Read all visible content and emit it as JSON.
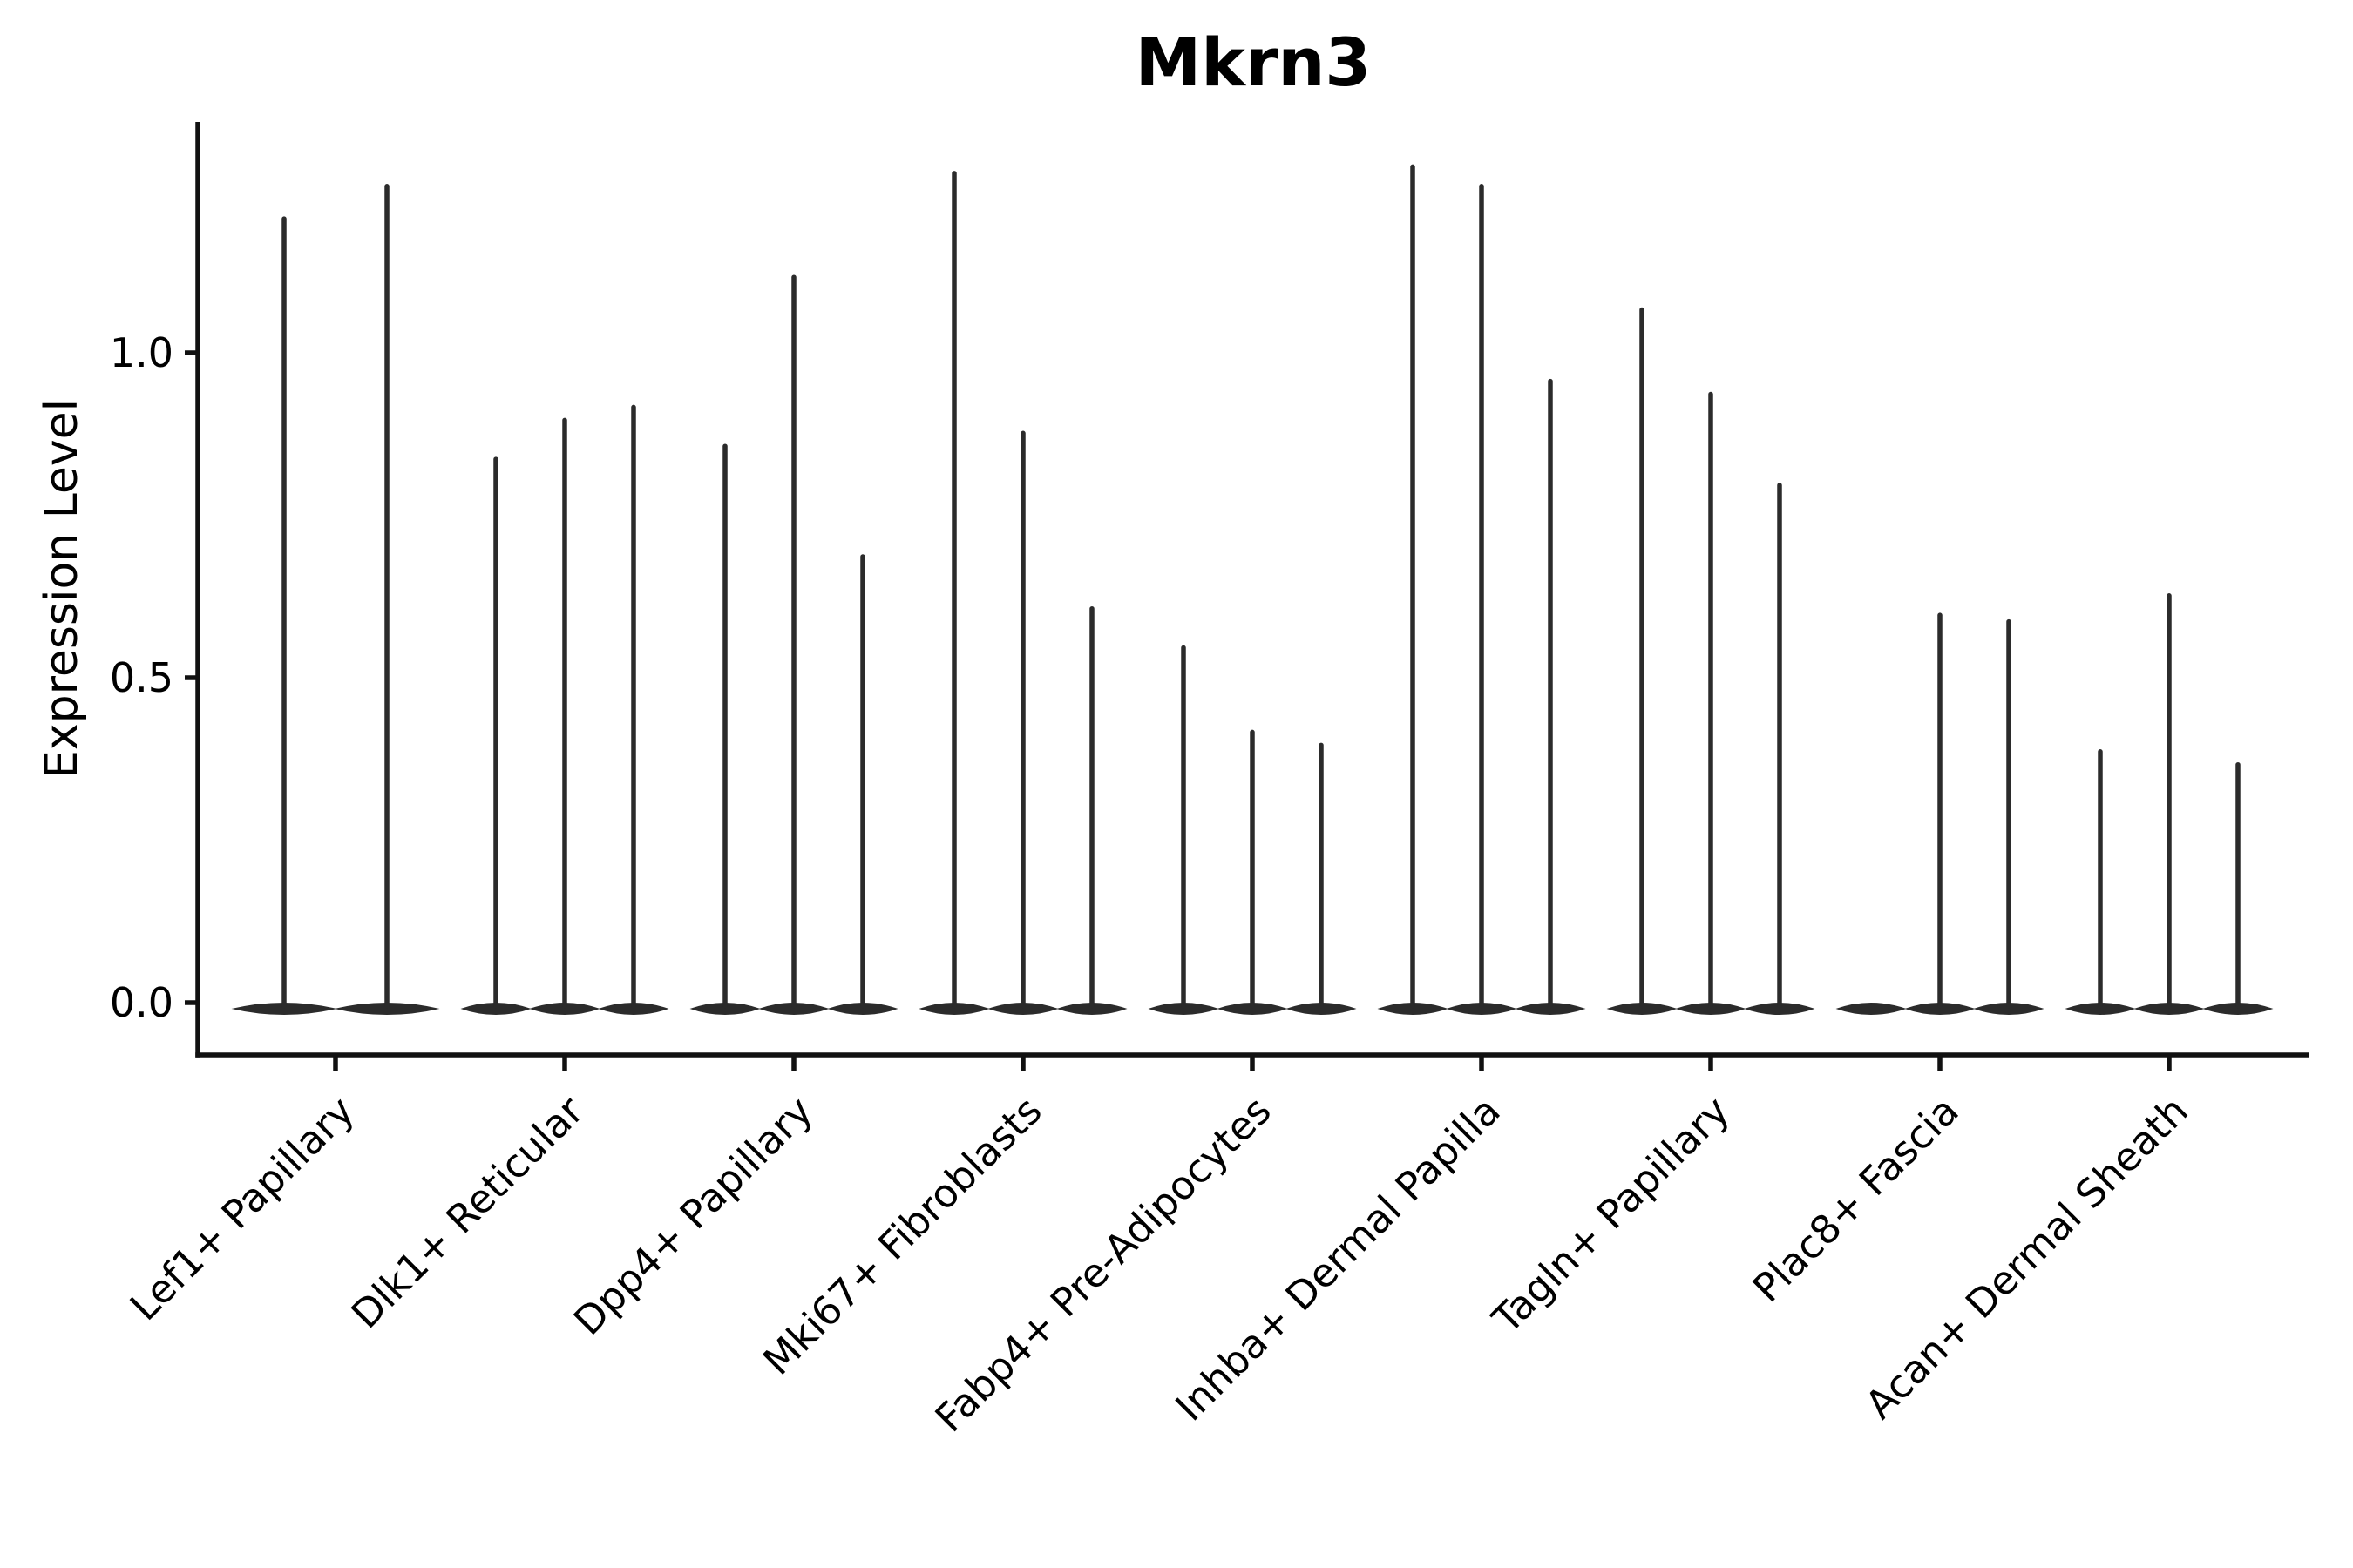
{
  "figure": {
    "title": "Mkrn3"
  },
  "chart_data": {
    "type": "violin",
    "title": "Mkrn3",
    "xlabel": "",
    "ylabel": "Expression Level",
    "yticks": [
      {
        "v": 0.0,
        "label": "0.0"
      },
      {
        "v": 0.5,
        "label": "0.5"
      },
      {
        "v": 1.0,
        "label": "1.0"
      }
    ],
    "ylim": [
      -0.08,
      1.36
    ],
    "grid": false,
    "legend_position": "none",
    "categories": [
      "Lef1+ Papillary",
      "Dlk1+ Reticular",
      "Dpp4+ Papillary",
      "Mki67+ Fibroblasts",
      "Fabp4+ Pre-Adipocytes",
      "Inhba+ Dermal Papilla",
      "Tagln+ Papillary",
      "Plac8+ Fascia",
      "Acan+ Dermal Sheath"
    ],
    "violin_max_expression": [
      [
        1.21,
        1.26
      ],
      [
        0.84,
        0.9,
        0.92
      ],
      [
        0.86,
        1.12,
        0.69
      ],
      [
        1.28,
        0.88,
        0.61
      ],
      [
        0.55,
        0.42,
        0.4
      ],
      [
        1.29,
        1.26,
        0.96
      ],
      [
        1.07,
        0.94,
        0.8
      ],
      [
        0.0,
        0.6,
        0.59
      ],
      [
        0.39,
        0.63,
        0.37
      ]
    ],
    "colors": {
      "violin": "#2b2b2b",
      "axis": "#111111",
      "text": "#000000",
      "background": "#ffffff"
    }
  }
}
